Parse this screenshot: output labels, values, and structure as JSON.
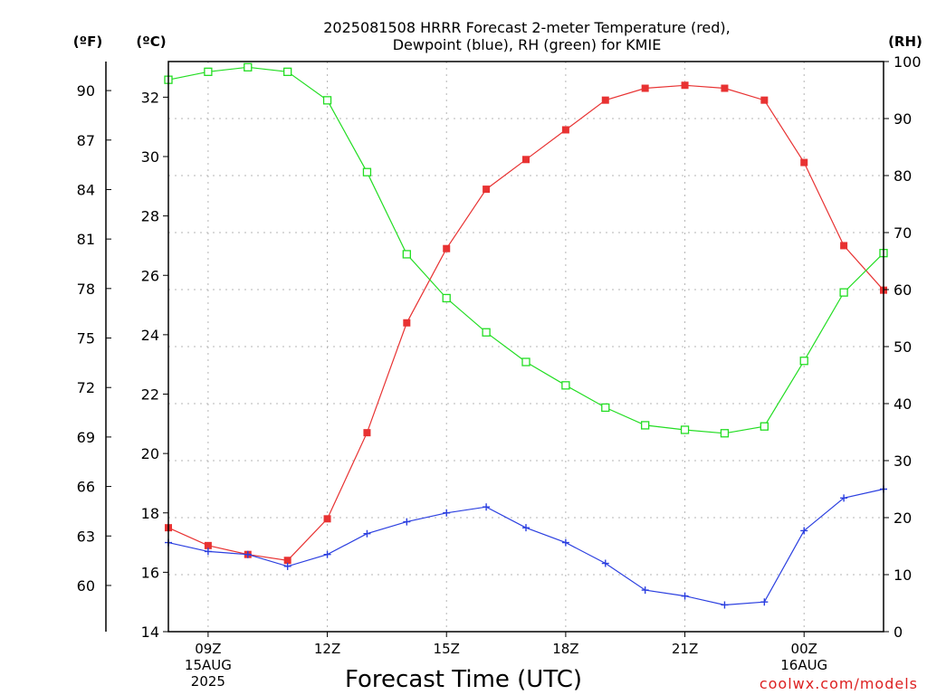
{
  "chart_data": {
    "type": "line",
    "title_line1": "2025081508 HRRR Forecast 2-meter Temperature (red),",
    "title_line2": "Dewpoint (blue), RH (green) for KMIE",
    "xlabel": "Forecast Time (UTC)",
    "unit_f": "(ºF)",
    "unit_c": "(ºC)",
    "unit_rh": "(RH)",
    "watermark": "coolwx.com/models",
    "x_ticks": [
      {
        "hour": 9,
        "label": "09Z",
        "date": "15AUG",
        "year": "2025"
      },
      {
        "hour": 12,
        "label": "12Z"
      },
      {
        "hour": 15,
        "label": "15Z"
      },
      {
        "hour": 18,
        "label": "18Z"
      },
      {
        "hour": 21,
        "label": "21Z"
      },
      {
        "hour": 24,
        "label": "00Z",
        "date": "16AUG"
      }
    ],
    "xlim": [
      8,
      26
    ],
    "ylim_c": [
      14,
      33.2
    ],
    "ylim_rh": [
      0,
      100
    ],
    "y_ticks_c": [
      "14",
      "16",
      "18",
      "20",
      "22",
      "24",
      "26",
      "28",
      "30",
      "32"
    ],
    "y_ticks_f": [
      "60",
      "63",
      "66",
      "69",
      "72",
      "75",
      "78",
      "81",
      "84",
      "87",
      "90"
    ],
    "y_ticks_rh": [
      "0",
      "10",
      "20",
      "30",
      "40",
      "50",
      "60",
      "70",
      "80",
      "90",
      "100"
    ],
    "series": [
      {
        "name": "Temperature",
        "axis": "c",
        "color": "#e83232",
        "marker": "filled-square",
        "x": [
          8,
          9,
          10,
          11,
          12,
          13,
          14,
          15,
          16,
          17,
          18,
          19,
          20,
          21,
          22,
          23,
          24,
          25,
          26
        ],
        "values": [
          17.5,
          16.9,
          16.6,
          16.4,
          17.8,
          20.7,
          24.4,
          26.9,
          28.9,
          29.9,
          30.9,
          31.9,
          32.3,
          32.4,
          32.3,
          31.9,
          29.8,
          27.0,
          25.5
        ]
      },
      {
        "name": "Dewpoint",
        "axis": "c",
        "color": "#2b3fe0",
        "marker": "plus",
        "x": [
          8,
          9,
          10,
          11,
          12,
          13,
          14,
          15,
          16,
          17,
          18,
          19,
          20,
          21,
          22,
          23,
          24,
          25,
          26
        ],
        "values": [
          17.0,
          16.7,
          16.6,
          16.2,
          16.6,
          17.3,
          17.7,
          18.0,
          18.2,
          17.5,
          17.0,
          16.3,
          15.4,
          15.2,
          14.9,
          15.0,
          17.4,
          18.5,
          18.8
        ]
      },
      {
        "name": "RH",
        "axis": "rh",
        "color": "#22dd22",
        "marker": "open-square",
        "x": [
          8,
          9,
          10,
          11,
          12,
          13,
          14,
          15,
          16,
          17,
          18,
          19,
          20,
          21,
          22,
          23,
          24,
          25,
          26
        ],
        "values": [
          96.8,
          98.2,
          99.0,
          98.2,
          93.2,
          80.6,
          66.2,
          58.5,
          52.5,
          47.3,
          43.2,
          39.3,
          36.2,
          35.4,
          34.8,
          36.0,
          47.5,
          59.5,
          66.4
        ]
      }
    ]
  }
}
